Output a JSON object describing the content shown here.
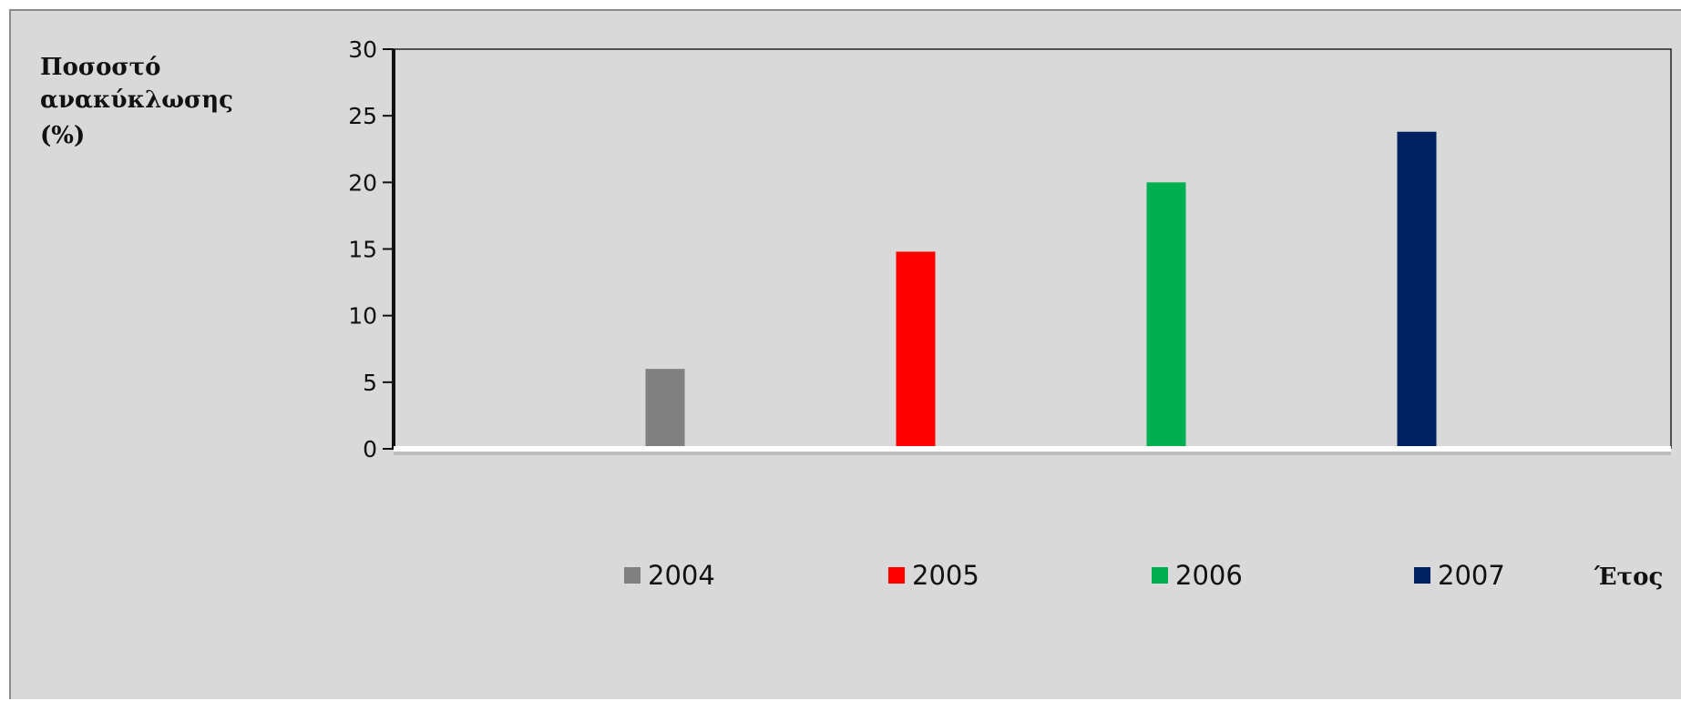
{
  "chart_data": {
    "type": "bar",
    "ylabel_lines": [
      "Ποσοστό",
      "ανακύκλωσης",
      "(%)"
    ],
    "xlabel": "Έτος",
    "categories": [
      "2004",
      "2005",
      "2006",
      "2007"
    ],
    "values": [
      6,
      14.8,
      20,
      23.8
    ],
    "colors": [
      "#808080",
      "#ff0000",
      "#00b050",
      "#002060"
    ],
    "ylim": [
      0,
      30
    ],
    "yticks": [
      0,
      5,
      10,
      15,
      20,
      25,
      30
    ],
    "legend": {
      "placement": "bottom",
      "entries": [
        "2004",
        "2005",
        "2006",
        "2007"
      ]
    },
    "grid": false
  }
}
